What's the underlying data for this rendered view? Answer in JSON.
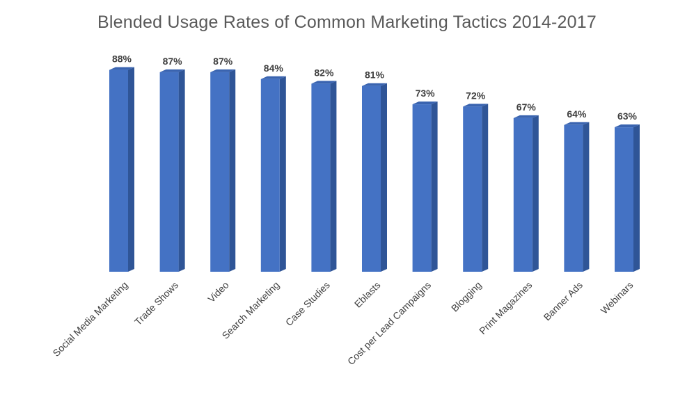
{
  "chart_data": {
    "type": "bar",
    "title": "Blended Usage Rates of Common Marketing Tactics 2014-2017",
    "xlabel": "",
    "ylabel": "",
    "ylim": [
      0,
      100
    ],
    "grid": false,
    "categories": [
      "Social Media Marketing",
      "Trade Shows",
      "Video",
      "Search Marketing",
      "Case Studies",
      "Eblasts",
      "Cost per Lead Campaigns",
      "Blogging",
      "Print Magazines",
      "Banner Ads",
      "Webinars"
    ],
    "values": [
      88,
      87,
      87,
      84,
      82,
      81,
      73,
      72,
      67,
      64,
      63
    ],
    "value_labels": [
      "88%",
      "87%",
      "87%",
      "84%",
      "82%",
      "81%",
      "73%",
      "72%",
      "67%",
      "64%",
      "63%"
    ],
    "colors": {
      "bar_front": "#4472C4",
      "bar_side": "#2F5597",
      "bar_top": "#3A64B0"
    }
  }
}
